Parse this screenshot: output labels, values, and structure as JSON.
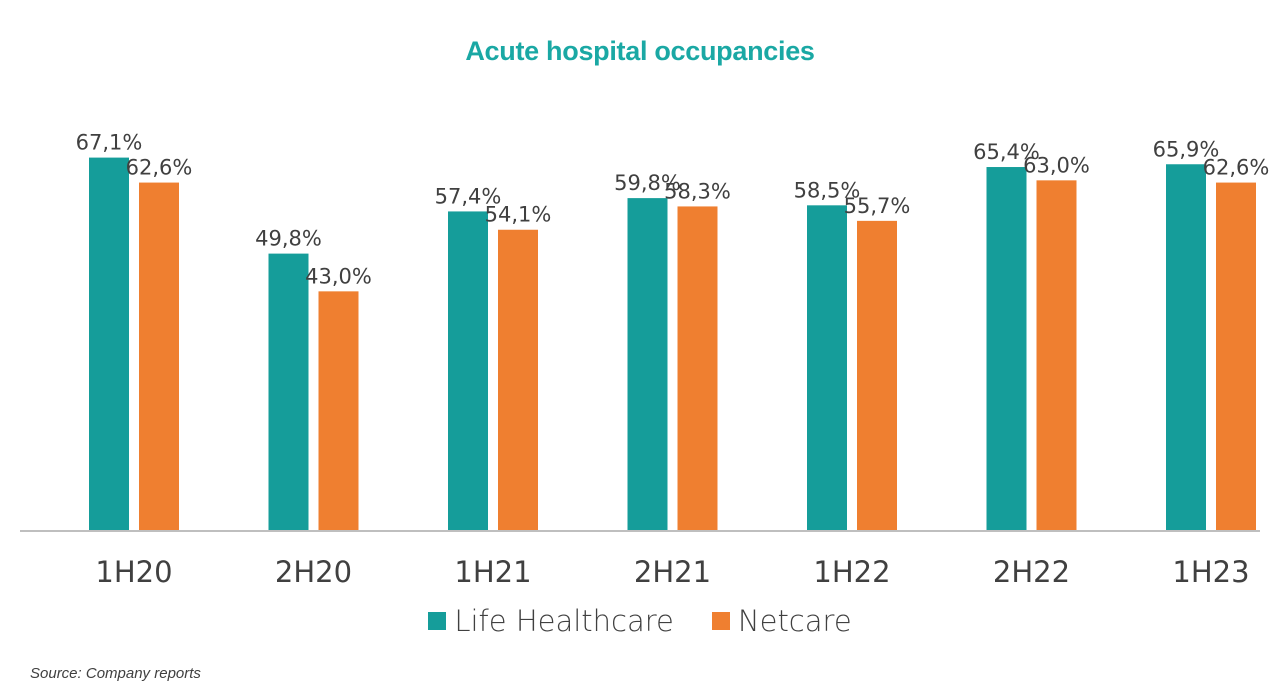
{
  "chart_data": {
    "type": "bar",
    "title": "Acute hospital occupancies",
    "categories": [
      "1H20",
      "2H20",
      "1H21",
      "2H21",
      "1H22",
      "2H22",
      "1H23"
    ],
    "series": [
      {
        "name": "Life Healthcare",
        "values": [
          67.1,
          49.8,
          57.4,
          59.8,
          58.5,
          65.4,
          65.9
        ],
        "labels": [
          "67,1%",
          "49,8%",
          "57,4%",
          "59,8%",
          "58,5%",
          "65,4%",
          "65,9%"
        ]
      },
      {
        "name": "Netcare",
        "values": [
          62.6,
          43.0,
          54.1,
          58.3,
          55.7,
          63.0,
          62.6
        ],
        "labels": [
          "62,6%",
          "43,0%",
          "54,1%",
          "58,3%",
          "55,7%",
          "63,0%",
          "62,6%"
        ]
      }
    ],
    "ylim": [
      0,
      100
    ],
    "grid": false,
    "legend_position": "bottom"
  },
  "colors": {
    "title": "#1aa8a4",
    "life_healthcare": "#159d9a",
    "netcare": "#ef7f30",
    "axis": "#bfbfbf",
    "text": "#404040"
  },
  "source": "Source: Company reports"
}
